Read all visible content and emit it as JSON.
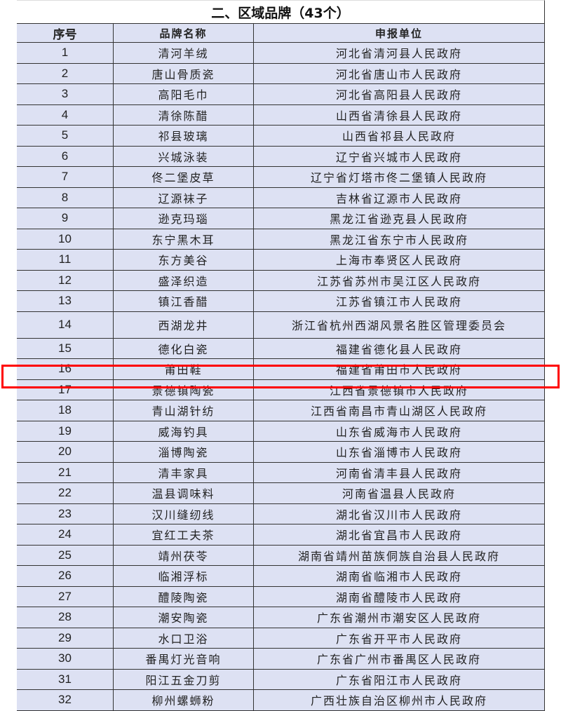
{
  "title": "二、区域品牌（43个）",
  "headers": [
    "序号",
    "品牌名称",
    "申报单位"
  ],
  "highlight_color": "#ff0000",
  "highlighted_row": "17",
  "rows": [
    [
      "1",
      "清河羊绒",
      "河北省清河县人民政府"
    ],
    [
      "2",
      "唐山骨质瓷",
      "河北省唐山市人民政府"
    ],
    [
      "3",
      "高阳毛巾",
      "河北省高阳县人民政府"
    ],
    [
      "4",
      "清徐陈醋",
      "山西省清徐县人民政府"
    ],
    [
      "5",
      "祁县玻璃",
      "山西省祁县人民政府"
    ],
    [
      "6",
      "兴城泳装",
      "辽宁省兴城市人民政府"
    ],
    [
      "7",
      "佟二堡皮草",
      "辽宁省灯塔市佟二堡镇人民政府"
    ],
    [
      "8",
      "辽源袜子",
      "吉林省辽源市人民政府"
    ],
    [
      "9",
      "逊克玛瑙",
      "黑龙江省逊克县人民政府"
    ],
    [
      "10",
      "东宁黑木耳",
      "黑龙江省东宁市人民政府"
    ],
    [
      "11",
      "东方美谷",
      "上海市奉贤区人民政府"
    ],
    [
      "12",
      "盛泽织造",
      "江苏省苏州市吴江区人民政府"
    ],
    [
      "13",
      "镇江香醋",
      "江苏省镇江市人民政府"
    ],
    [
      "14",
      "西湖龙井",
      "浙江省杭州西湖风景名胜区管理委员会"
    ],
    [
      "15",
      "德化白瓷",
      "福建省德化县人民政府"
    ],
    [
      "16",
      "莆田鞋",
      "福建省莆田市人民政府"
    ],
    [
      "17",
      "景德镇陶瓷",
      "江西省景德镇市人民政府"
    ],
    [
      "18",
      "青山湖针纺",
      "江西省南昌市青山湖区人民政府"
    ],
    [
      "19",
      "威海钓具",
      "山东省威海市人民政府"
    ],
    [
      "20",
      "淄博陶瓷",
      "山东省淄博市人民政府"
    ],
    [
      "21",
      "清丰家具",
      "河南省清丰县人民政府"
    ],
    [
      "22",
      "温县调味料",
      "河南省温县人民政府"
    ],
    [
      "23",
      "汉川缝纫线",
      "湖北省汉川市人民政府"
    ],
    [
      "24",
      "宜红工夫茶",
      "湖北省宜昌市人民政府"
    ],
    [
      "25",
      "靖州茯苓",
      "湖南省靖州苗族侗族自治县人民政府"
    ],
    [
      "26",
      "临湘浮标",
      "湖南省临湘市人民政府"
    ],
    [
      "27",
      "醴陵陶瓷",
      "湖南省醴陵市人民政府"
    ],
    [
      "28",
      "潮安陶瓷",
      "广东省潮州市潮安区人民政府"
    ],
    [
      "29",
      "水口卫浴",
      "广东省开平市人民政府"
    ],
    [
      "30",
      "番禺灯光音响",
      "广东省广州市番禺区人民政府"
    ],
    [
      "31",
      "阳江五金刀剪",
      "广东省阳江市人民政府"
    ],
    [
      "32",
      "柳州螺蛳粉",
      "广西壮族自治区柳州市人民政府"
    ]
  ]
}
